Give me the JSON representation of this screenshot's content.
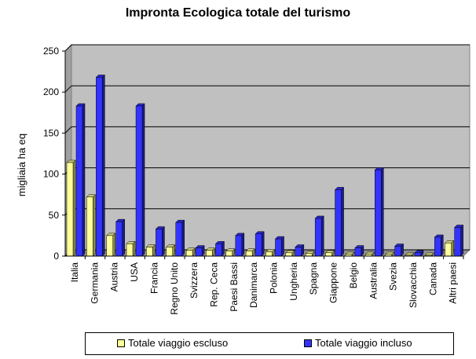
{
  "chart_data": {
    "type": "bar",
    "title": "Impronta Ecologica totale del turismo",
    "ylabel": "migliaia ha eq",
    "xlabel": "",
    "ylim": [
      0,
      250
    ],
    "yticks": [
      0,
      50,
      100,
      150,
      200,
      250
    ],
    "grid": true,
    "legend_position": "bottom",
    "categories": [
      "Italia",
      "Germania",
      "Austria",
      "USA",
      "Francia",
      "Regno Unito",
      "Svizzera",
      "Rep. Ceca",
      "Paesi Bassi",
      "Danimarca",
      "Polonia",
      "Ungheria",
      "Spagna",
      "Giappone",
      "Belgio",
      "Australia",
      "Svezia",
      "Slovacchia",
      "Canada",
      "Altri paesi"
    ],
    "series": [
      {
        "name": "Totale viaggio escluso",
        "color": "#FFFF99",
        "values": [
          114,
          72,
          25,
          15,
          11,
          11,
          7,
          7,
          6,
          6,
          5,
          4,
          3,
          4,
          2,
          2,
          2,
          1,
          1,
          16
        ]
      },
      {
        "name": "Totale viaggio incluso",
        "color": "#3333FF",
        "values": [
          183,
          218,
          42,
          183,
          33,
          41,
          10,
          15,
          25,
          27,
          21,
          11,
          46,
          81,
          10,
          105,
          12,
          4,
          23,
          35
        ]
      }
    ]
  }
}
